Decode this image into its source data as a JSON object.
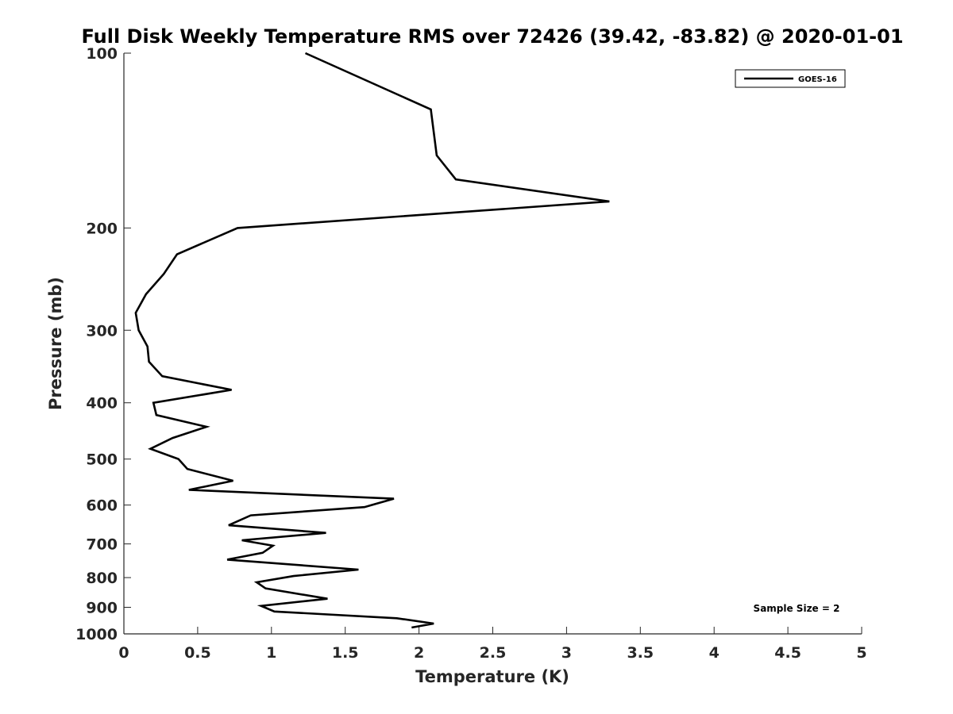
{
  "chart_data": {
    "type": "line",
    "title": "Full Disk Weekly Temperature RMS over 72426 (39.42, -83.82) @ 2020-01-01",
    "xlabel": "Temperature (K)",
    "ylabel": "Pressure (mb)",
    "xlim": [
      0,
      5
    ],
    "ylim": [
      1000,
      100
    ],
    "y_scale": "log",
    "y_reversed": true,
    "x_ticks": [
      0,
      0.5,
      1,
      1.5,
      2,
      2.5,
      3,
      3.5,
      4,
      4.5,
      5
    ],
    "x_tick_labels": [
      "0",
      "0.5",
      "1",
      "1.5",
      "2",
      "2.5",
      "3",
      "3.5",
      "4",
      "4.5",
      "5"
    ],
    "y_ticks": [
      100,
      200,
      300,
      400,
      500,
      600,
      700,
      800,
      900,
      1000
    ],
    "y_tick_labels": [
      "100",
      "200",
      "300",
      "400",
      "500",
      "600",
      "700",
      "800",
      "900",
      "1000"
    ],
    "grid": false,
    "legend_position": "top-right",
    "annotation": "Sample Size = 2",
    "series": [
      {
        "name": "GOES-16",
        "color": "#000000",
        "points": [
          [
            1.23,
            100
          ],
          [
            2.08,
            125
          ],
          [
            2.12,
            150
          ],
          [
            2.25,
            165
          ],
          [
            3.29,
            180
          ],
          [
            0.77,
            200
          ],
          [
            0.36,
            222
          ],
          [
            0.27,
            240
          ],
          [
            0.15,
            260
          ],
          [
            0.08,
            280
          ],
          [
            0.1,
            300
          ],
          [
            0.16,
            320
          ],
          [
            0.17,
            340
          ],
          [
            0.26,
            360
          ],
          [
            0.73,
            380
          ],
          [
            0.2,
            400
          ],
          [
            0.22,
            420
          ],
          [
            0.56,
            440
          ],
          [
            0.33,
            460
          ],
          [
            0.18,
            480
          ],
          [
            0.37,
            500
          ],
          [
            0.43,
            520
          ],
          [
            0.74,
            545
          ],
          [
            0.44,
            565
          ],
          [
            1.83,
            585
          ],
          [
            1.63,
            605
          ],
          [
            0.86,
            625
          ],
          [
            0.71,
            650
          ],
          [
            1.37,
            670
          ],
          [
            0.8,
            690
          ],
          [
            1.01,
            705
          ],
          [
            0.94,
            725
          ],
          [
            0.7,
            745
          ],
          [
            1.59,
            775
          ],
          [
            1.15,
            795
          ],
          [
            0.9,
            815
          ],
          [
            0.96,
            835
          ],
          [
            1.38,
            870
          ],
          [
            0.93,
            895
          ],
          [
            1.02,
            915
          ],
          [
            1.85,
            940
          ],
          [
            2.1,
            960
          ],
          [
            1.95,
            975
          ]
        ]
      }
    ]
  }
}
